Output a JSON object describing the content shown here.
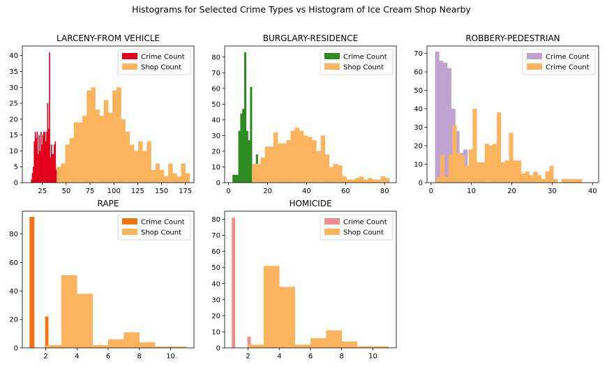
{
  "figure": {
    "suptitle": "Histograms for Selected Crime Types vs Histogram of Ice Cream Shop Nearby"
  },
  "colors": {
    "red": "#e3001b",
    "green": "#2e8b22",
    "purple": "#c0a3d2",
    "darkorange": "#f27311",
    "pink": "#f28b8b",
    "orange": "#fbb45d"
  },
  "chart_data": [
    {
      "type": "bar",
      "title": "LARCENY-FROM VEHICLE",
      "xlim": [
        4,
        184
      ],
      "ylim": [
        0,
        43
      ],
      "xticks": [
        25,
        50,
        75,
        100,
        125,
        150,
        175
      ],
      "yticks": [
        0,
        5,
        10,
        15,
        20,
        25,
        30,
        35,
        40
      ],
      "legend": {
        "placement": "top-right",
        "entries": [
          "Crime Count",
          "Shop Count"
        ]
      },
      "series": [
        {
          "name": "Crime Count",
          "color": "red",
          "bin_edges": [
            13,
            14,
            15,
            16,
            17,
            18,
            19,
            20,
            21,
            22,
            23,
            24,
            25,
            26,
            27,
            28,
            29,
            30,
            31,
            32,
            33,
            34,
            35,
            36,
            37,
            38,
            39,
            40,
            41
          ],
          "counts": [
            1,
            3,
            5,
            13,
            16,
            14,
            16,
            9,
            15,
            10,
            16,
            12,
            15,
            16,
            16,
            13,
            16,
            25,
            17,
            41,
            8,
            12,
            9,
            9,
            12,
            13,
            4,
            1
          ]
        },
        {
          "name": "Shop Count",
          "color": "orange",
          "bin_edges": [
            40,
            44.5,
            49,
            53.5,
            58,
            62.5,
            67,
            71.5,
            76,
            80.5,
            85,
            89.5,
            94,
            98.5,
            103,
            107.5,
            112,
            116.5,
            121,
            125.5,
            130,
            134.5,
            139,
            143.5,
            148,
            152.5,
            157,
            161.5,
            166,
            170.5,
            175,
            179.5
          ],
          "counts": [
            5,
            6,
            12,
            14,
            19,
            19,
            21,
            29,
            30,
            23,
            21,
            26,
            22,
            29,
            30,
            20,
            16,
            12,
            10,
            13,
            10,
            13,
            4,
            6,
            4,
            2,
            6,
            3,
            2,
            6,
            3
          ]
        }
      ]
    },
    {
      "type": "bar",
      "title": "BURGLARY-RESIDENCE",
      "xlim": [
        -2,
        86
      ],
      "ylim": [
        0,
        87
      ],
      "xticks": [
        0,
        20,
        40,
        60,
        80
      ],
      "yticks": [
        0,
        10,
        20,
        30,
        40,
        50,
        60,
        70,
        80
      ],
      "legend": {
        "placement": "top-right",
        "entries": [
          "Crime Count",
          "Shop Count"
        ]
      },
      "series": [
        {
          "name": "Crime Count",
          "color": "green",
          "bin_edges": [
            2,
            3,
            4,
            5,
            6,
            7,
            8,
            9,
            10,
            11,
            12,
            13,
            14,
            15,
            16
          ],
          "counts": [
            5,
            5,
            5,
            33,
            44,
            47,
            83,
            33,
            27,
            61,
            8,
            11,
            18,
            10
          ]
        },
        {
          "name": "Shop Count",
          "color": "orange",
          "bin_edges": [
            12,
            14.2,
            16.4,
            18.6,
            20.8,
            23,
            25.2,
            27.4,
            29.6,
            31.8,
            34,
            36.2,
            38.4,
            40.6,
            42.8,
            45,
            47.2,
            49.4,
            51.6,
            53.8,
            56,
            58.2,
            60.4,
            62.6,
            64.8,
            67,
            69.2,
            71.4,
            73.6,
            75.8,
            78,
            80.2,
            82.4
          ],
          "counts": [
            12,
            12,
            16,
            23,
            23,
            32,
            25,
            25,
            27,
            33,
            35,
            33,
            30,
            29,
            27,
            20,
            30,
            18,
            10,
            12,
            11,
            4,
            2,
            2,
            3,
            4,
            2,
            3,
            2,
            2,
            4,
            3
          ]
        }
      ]
    },
    {
      "type": "bar",
      "title": "ROBBERY-PEDESTRIAN",
      "xlim": [
        -1,
        41.5
      ],
      "ylim": [
        0,
        74
      ],
      "xticks": [
        0,
        10,
        20,
        30,
        40
      ],
      "yticks": [
        0,
        10,
        20,
        30,
        40,
        50,
        60,
        70
      ],
      "legend": {
        "placement": "top-right",
        "entries": [
          "Crime Count",
          "Crime Count"
        ]
      },
      "series": [
        {
          "name": "Crime Count",
          "color": "purple",
          "bin_edges": [
            1,
            2,
            3,
            4,
            5,
            6,
            7,
            8,
            9
          ],
          "counts": [
            71,
            66,
            65,
            62,
            40,
            28,
            16,
            18
          ]
        },
        {
          "name": "Crime Count",
          "color": "orange",
          "bin_edges": [
            1.3,
            2.3,
            3.3,
            4.3,
            5.3,
            6.3,
            7.3,
            8.3,
            9.3,
            10.3,
            11.3,
            12.3,
            13.3,
            14.3,
            15.3,
            16.3,
            17.3,
            18.3,
            19.3,
            20.3,
            21.3,
            22.3,
            23.3,
            24.3,
            25.3,
            26.3,
            27.3,
            28.3,
            29.3,
            30.3,
            31.3,
            32.3,
            33.3,
            34.3,
            35.3,
            36.3,
            37.3
          ],
          "counts": [
            3,
            15,
            3,
            15,
            31,
            16,
            15,
            9,
            18,
            40,
            11,
            11,
            21,
            20,
            21,
            38,
            11,
            12,
            27,
            12,
            12,
            5,
            6,
            4,
            6,
            4,
            2,
            6,
            9,
            2,
            0,
            2,
            2,
            2,
            2,
            2
          ]
        }
      ]
    },
    {
      "type": "bar",
      "title": "RAPE",
      "xlim": [
        0.5,
        11.5
      ],
      "ylim": [
        0,
        96
      ],
      "xticks": [
        2,
        4,
        6,
        8,
        10
      ],
      "yticks": [
        0,
        20,
        40,
        60,
        80
      ],
      "legend": {
        "placement": "top-right",
        "entries": [
          "Crime Count",
          "Shop Count"
        ]
      },
      "series": [
        {
          "name": "Crime Count",
          "color": "darkorange",
          "bin_edges": [
            0.96,
            1.06,
            1.16,
            1.26,
            1.36,
            1.46,
            1.56,
            1.66,
            1.76,
            1.86,
            1.96,
            2.06,
            2.16
          ],
          "counts": [
            92,
            92,
            92,
            0,
            0,
            0,
            0,
            0,
            0,
            0,
            22,
            22
          ]
        },
        {
          "name": "Shop Count",
          "color": "orange",
          "bin_edges": [
            2,
            3,
            4,
            5,
            6,
            7,
            8,
            9,
            10,
            11
          ],
          "counts": [
            2,
            51,
            38,
            2,
            6,
            11,
            4,
            1,
            1
          ]
        }
      ]
    },
    {
      "type": "bar",
      "title": "HOMICIDE",
      "xlim": [
        0.5,
        11.5
      ],
      "ylim": [
        0,
        85
      ],
      "xticks": [
        2,
        4,
        6,
        8,
        10
      ],
      "yticks": [
        0,
        10,
        20,
        30,
        40,
        50,
        60,
        70,
        80
      ],
      "legend": {
        "placement": "top-right",
        "entries": [
          "Crime Count",
          "Shop Count"
        ]
      },
      "series": [
        {
          "name": "Crime Count",
          "color": "pink",
          "bin_edges": [
            0.96,
            1.16,
            1.36,
            1.56,
            1.76,
            1.96,
            2.16
          ],
          "counts": [
            81,
            0,
            0,
            0,
            0,
            7
          ]
        },
        {
          "name": "Shop Count",
          "color": "orange",
          "bin_edges": [
            2,
            3,
            4,
            5,
            6,
            7,
            8,
            9,
            10,
            11
          ],
          "counts": [
            2,
            51,
            38,
            2,
            6,
            11,
            4,
            1,
            1
          ]
        }
      ]
    }
  ]
}
